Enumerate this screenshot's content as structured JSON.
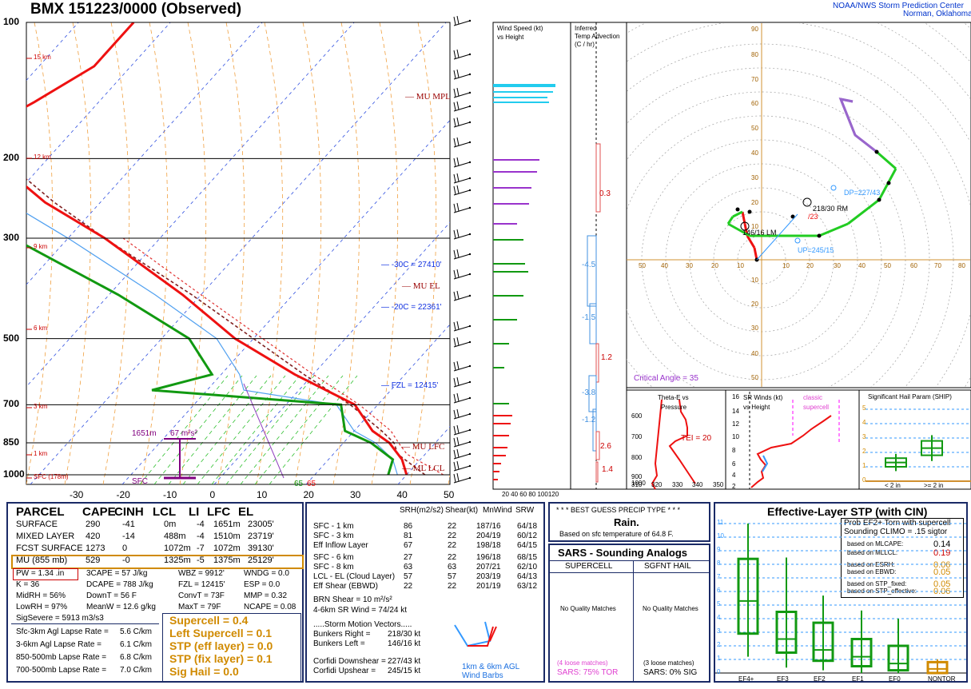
{
  "header": {
    "title": "BMX   151223/0000  (Observed)",
    "org_line1": "NOAA/NWS Storm Prediction Center",
    "org_line2": "Norman, Oklahoma"
  },
  "skewt": {
    "pressure_labels": [
      "100",
      "200",
      "300",
      "500",
      "700",
      "850",
      "1000"
    ],
    "height_labels": [
      "15 km",
      "12 km",
      "9 km",
      "6 km",
      "3 km",
      "1 km",
      "SFC (178m)"
    ],
    "temp_ticks": [
      "-30",
      "-20",
      "-10",
      "0",
      "10",
      "20",
      "30",
      "40",
      "50"
    ],
    "annotations": {
      "mu_mpl": "MU MPL",
      "mu_el": "MU EL",
      "mu_lfc": "MU LFC",
      "ml_lcl": "ML LCL",
      "m30c": "-30C = 27410'",
      "m20c": "-20C = 22361'",
      "fzl": "FZL = 12415'",
      "effective_layer_bottom": "1651m",
      "effective_layer_srh": "67 m²s²",
      "sfc": "SFC",
      "sfc_td": "65",
      "sfc_t": "65"
    }
  },
  "wind_speed_panel": {
    "title": "Wind Speed (kt)",
    "subtitle": "vs Height",
    "ticks": "20 40 60 80 100120"
  },
  "temp_adv_panel": {
    "title1": "Inferred",
    "title2": "Temp Advection",
    "title3": "(C / hr)",
    "values": [
      "0.3",
      "-4.5",
      "-1.5",
      "1.2",
      "-3.8",
      "-1.2",
      "2.6",
      "1.4"
    ]
  },
  "hodograph": {
    "ticks": [
      "90",
      "80",
      "70",
      "60",
      "50",
      "40",
      "30",
      "20",
      "10",
      "10",
      "20",
      "30",
      "40",
      "50"
    ],
    "xticks": [
      "50",
      "40",
      "30",
      "20",
      "10",
      "10",
      "20",
      "30",
      "40",
      "50",
      "60",
      "70",
      "80"
    ],
    "labels": {
      "rm": "218/30 RM",
      "lm": "146/16 LM",
      "dp": "DP=227/43",
      "up": "UP=245/15",
      "mean": "/23",
      "critical_angle": "Critical Angle = 35"
    }
  },
  "theta_panel": {
    "title1": "Theta-E vs",
    "title2": "Pressure",
    "tei": "TEI = 20",
    "yticks": [
      "600",
      "700",
      "800",
      "900",
      "1000"
    ],
    "xticks": [
      "310",
      "320",
      "330",
      "340",
      "350"
    ]
  },
  "srwind_panel": {
    "title1": "SR Winds (kt)",
    "title2": "vs Height",
    "classic1": "classic",
    "classic2": "supercell",
    "yticks": [
      "16",
      "14",
      "12",
      "10",
      "8",
      "6",
      "4",
      "2"
    ]
  },
  "ship_panel": {
    "title": "Significant Hail Param (SHIP)",
    "yticks": [
      "5",
      "4",
      "3",
      "2",
      "1",
      "0"
    ],
    "xlabel1": "< 2 in",
    "xlabel2": ">= 2 in"
  },
  "parcel_table": {
    "headers": [
      "PARCEL",
      "CAPE",
      "CINH",
      "LCL",
      "LI",
      "LFC",
      "EL"
    ],
    "rows": [
      [
        "SURFACE",
        "290",
        "-41",
        "0m",
        "-4",
        "1651m",
        "23005'"
      ],
      [
        "MIXED LAYER",
        "420",
        "-14",
        "488m",
        "-4",
        "1510m",
        "23719'"
      ],
      [
        "FCST SURFACE",
        "1273",
        "0",
        "1072m",
        "-7",
        "1072m",
        "39130'"
      ],
      [
        "MU  (855 mb)",
        "529",
        "-0",
        "1325m",
        "-5",
        "1375m",
        "25129'"
      ]
    ],
    "col1": [
      "PW = 1.34 .in",
      "K = 36",
      "MidRH = 56%",
      "LowRH = 97%",
      "SigSevere = 5913 m3/s3"
    ],
    "col2": [
      "3CAPE = 57 J/kg",
      "DCAPE = 788 J/kg",
      "DownT = 56 F",
      "MeanW = 12.6 g/kg"
    ],
    "col3": [
      "WBZ = 9912'",
      "FZL = 12415'",
      "ConvT = 73F",
      "MaxT = 79F"
    ],
    "col4": [
      "WNDG = 0.0",
      "ESP = 0.0",
      "MMP = 0.32",
      "NCAPE = 0.08"
    ],
    "lapse": [
      [
        "Sfc-3km Agl Lapse Rate =",
        "5.6 C/km"
      ],
      [
        "3-6km Agl Lapse Rate =",
        "6.1 C/km"
      ],
      [
        "850-500mb Lapse Rate =",
        "6.8 C/km"
      ],
      [
        "700-500mb Lapse Rate =",
        "7.0 C/km"
      ]
    ],
    "params": [
      "Supercell = 0.4",
      "Left Supercell = 0.1",
      "STP (eff layer) = 0.0",
      "STP (fix layer) = 0.1",
      "Sig Hail = 0.0"
    ]
  },
  "kinematics_table": {
    "headers": [
      "SRH(m2/s2)",
      "Shear(kt)",
      "MnWind",
      "SRW"
    ],
    "group1": [
      [
        "SFC - 1 km",
        "86",
        "22",
        "187/16",
        "64/18"
      ],
      [
        "SFC - 3 km",
        "81",
        "22",
        "204/19",
        "60/12"
      ],
      [
        "Eff Inflow Layer",
        "67",
        "22",
        "198/18",
        "64/15"
      ]
    ],
    "group2": [
      [
        "SFC - 6 km",
        "27",
        "22",
        "196/18",
        "68/15"
      ],
      [
        "SFC - 8 km",
        "63",
        "63",
        "207/21",
        "62/10"
      ],
      [
        "LCL - EL (Cloud Layer)",
        "57",
        "57",
        "203/19",
        "64/13"
      ],
      [
        "Eff Shear (EBWD)",
        "22",
        "22",
        "201/19",
        "63/12"
      ]
    ],
    "brn": [
      "BRN Shear =  10 m²/s²",
      "4-6km SR Wind =        74/24 kt"
    ],
    "storm_motion_title": ".....Storm Motion Vectors.....",
    "storm_motion": [
      [
        "Bunkers Right =",
        "218/30 kt"
      ],
      [
        "Bunkers Left =",
        "146/16 kt"
      ],
      [
        "Corfidi Downshear =",
        "227/43 kt"
      ],
      [
        "Corfidi Upshear =",
        "245/15 kt"
      ]
    ],
    "barbs_label1": "1km & 6km AGL",
    "barbs_label2": "Wind Barbs"
  },
  "precip": {
    "title": "* * * BEST GUESS PRECIP TYPE * * *",
    "type": "Rain.",
    "basis": "Based on sfc temperature of 64.8 F."
  },
  "sars": {
    "title": "SARS - Sounding Analogs",
    "col1": "SUPERCELL",
    "col2": "SGFNT HAIL",
    "nomatch": "No Quality Matches",
    "loose1": "(4 loose matches)",
    "pct1": "SARS:  75% TOR",
    "loose2": "(3 loose matches)",
    "pct2": "SARS:  0% SIG"
  },
  "stp": {
    "title": "Effective-Layer STP (with CIN)",
    "prob1": "Prob EF2+ Torn with supercell",
    "prob2": "Sounding CLIMO = .15 sigtor",
    "items": [
      [
        "based on MLCAPE:",
        "0.14"
      ],
      [
        "based on MLLCL:",
        "0.19"
      ],
      [
        "based on ESRH:",
        "0.06"
      ],
      [
        "based on EBWD:",
        "0.05"
      ],
      [
        "based on STP_fixed:",
        "0.05"
      ],
      [
        "based on STP_effective:",
        "0.06"
      ]
    ],
    "yticks": [
      "11",
      "10",
      "9",
      "8",
      "7",
      "6",
      "5",
      "4",
      "3",
      "2",
      "1",
      "0"
    ],
    "categories": [
      "EF4+",
      "EF3",
      "EF2",
      "EF1",
      "EF0",
      "NONTOR"
    ]
  },
  "chart_data": [
    {
      "type": "line",
      "title": "BMX   151223/0000  (Observed)",
      "xlabel": "",
      "ylabel": "",
      "y_axis": "pressure (mb), log scale",
      "ylim": [
        1050,
        100
      ],
      "xlim": [
        -30,
        50
      ],
      "series": [
        {
          "values": [
            [
              1000,
              20
            ],
            [
              925,
              18
            ],
            [
              850,
              15
            ],
            [
              800,
              12
            ],
            [
              700,
              7.5
            ],
            [
              600,
              -2
            ],
            [
              500,
              -12
            ],
            [
              400,
              -22
            ],
            [
              300,
              -36
            ],
            [
              250,
              -46
            ],
            [
              200,
              -56
            ],
            [
              175,
              -60
            ],
            [
              150,
              -57
            ],
            [
              125,
              -54
            ],
            [
              100,
              -54
            ]
          ]
        },
        {
          "values": [
            [
              1000,
              18
            ],
            [
              925,
              17
            ],
            [
              850,
              13
            ],
            [
              800,
              9
            ],
            [
              700,
              6
            ],
            [
              650,
              -16
            ],
            [
              600,
              -11
            ],
            [
              500,
              -17
            ],
            [
              400,
              -29
            ],
            [
              300,
              -46
            ],
            [
              250,
              -55
            ],
            [
              200,
              -65
            ],
            [
              150,
              -75
            ]
          ]
        }
      ]
    },
    {
      "type": "bar",
      "title": "Wind Speed (kt)",
      "xlabel": "",
      "ylabel": "",
      "categories": [
        "1000",
        "950",
        "900",
        "850",
        "800",
        "750",
        "700",
        "650",
        "600",
        "550",
        "500",
        "450",
        "400",
        "350",
        "300",
        "250",
        "200",
        "175",
        "150"
      ],
      "values": [
        15,
        18,
        22,
        23,
        22,
        20,
        12,
        6,
        0,
        0,
        0,
        30,
        28,
        25,
        20,
        30,
        38,
        45,
        52
      ],
      "xlim": [
        0,
        120
      ]
    },
    {
      "type": "scatter",
      "title": "",
      "x": [
        -2,
        -3,
        -6,
        -7,
        -8,
        -12,
        -14,
        -5,
        5,
        14,
        24,
        36,
        49,
        56,
        48,
        39,
        33,
        38
      ],
      "y": [
        0,
        5,
        10,
        15,
        20,
        18,
        15,
        10,
        10,
        10,
        10,
        15,
        25,
        38,
        45,
        52,
        67,
        66
      ],
      "xlim": [
        -50,
        80
      ],
      "ylim": [
        -50,
        90
      ]
    },
    {
      "type": "bar",
      "title": "Effective-Layer STP (with CIN)",
      "xlabel": "",
      "ylabel": "",
      "categories": [
        "EF4+",
        "EF3",
        "EF2",
        "EF1",
        "EF0",
        "NONTOR"
      ],
      "boxes": [
        [
          1.2,
          2.9,
          5.3,
          8.4,
          11.0
        ],
        [
          0.4,
          1.5,
          2.5,
          4.5,
          8.5
        ],
        [
          0.2,
          0.9,
          1.7,
          3.7,
          5.7
        ],
        [
          0.0,
          0.5,
          1.2,
          2.5,
          4.6
        ],
        [
          0.0,
          0.2,
          0.7,
          2.0,
          4.0
        ],
        [
          0.0,
          0.0,
          0.3,
          0.8,
          1.0
        ]
      ],
      "ylim": [
        0,
        11.5
      ]
    },
    {
      "type": "bar",
      "title": "Significant Hail Param (SHIP)",
      "xlabel": "",
      "ylabel": "",
      "categories": [
        "< 2 in",
        ">= 2 in"
      ],
      "boxes": [
        [
          0.7,
          1.0,
          1.3,
          1.6,
          1.9
        ],
        [
          1.4,
          1.8,
          2.3,
          2.8,
          3.2
        ]
      ],
      "ylim": [
        0,
        5.5
      ]
    }
  ]
}
